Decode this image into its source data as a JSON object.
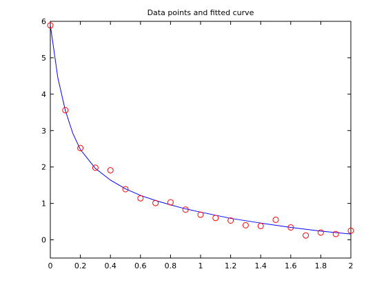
{
  "chart_data": {
    "type": "scatter",
    "title": "Data points and fitted curve",
    "xlabel": "",
    "ylabel": "",
    "xlim": [
      0,
      2
    ],
    "ylim": [
      -0.5,
      6
    ],
    "grid": false,
    "x_ticks": [
      "0",
      "0.2",
      "0.4",
      "0.6",
      "0.8",
      "1",
      "1.2",
      "1.4",
      "1.6",
      "1.8",
      "2"
    ],
    "y_ticks": [
      "0",
      "1",
      "2",
      "3",
      "4",
      "5",
      "6"
    ],
    "series": [
      {
        "kind": "points",
        "marker": "circle",
        "color": "#ff0000",
        "x": [
          0,
          0.1,
          0.2,
          0.3,
          0.4,
          0.5,
          0.6,
          0.7,
          0.8,
          0.9,
          1.0,
          1.1,
          1.2,
          1.3,
          1.4,
          1.5,
          1.6,
          1.7,
          1.8,
          1.9,
          2.0
        ],
        "y": [
          5.89,
          3.56,
          2.52,
          1.98,
          1.91,
          1.39,
          1.14,
          1.01,
          1.03,
          0.83,
          0.69,
          0.6,
          0.53,
          0.4,
          0.38,
          0.55,
          0.34,
          0.12,
          0.2,
          0.16,
          0.25
        ]
      },
      {
        "kind": "line",
        "color": "#0000ff",
        "x": [
          0,
          0.05,
          0.1,
          0.15,
          0.2,
          0.3,
          0.4,
          0.5,
          0.6,
          0.7,
          0.8,
          0.9,
          1.0,
          1.2,
          1.4,
          1.6,
          1.8,
          2.0
        ],
        "y": [
          5.9,
          4.45,
          3.55,
          2.92,
          2.48,
          1.96,
          1.64,
          1.4,
          1.22,
          1.08,
          0.96,
          0.85,
          0.76,
          0.59,
          0.46,
          0.34,
          0.24,
          0.16
        ]
      }
    ]
  }
}
